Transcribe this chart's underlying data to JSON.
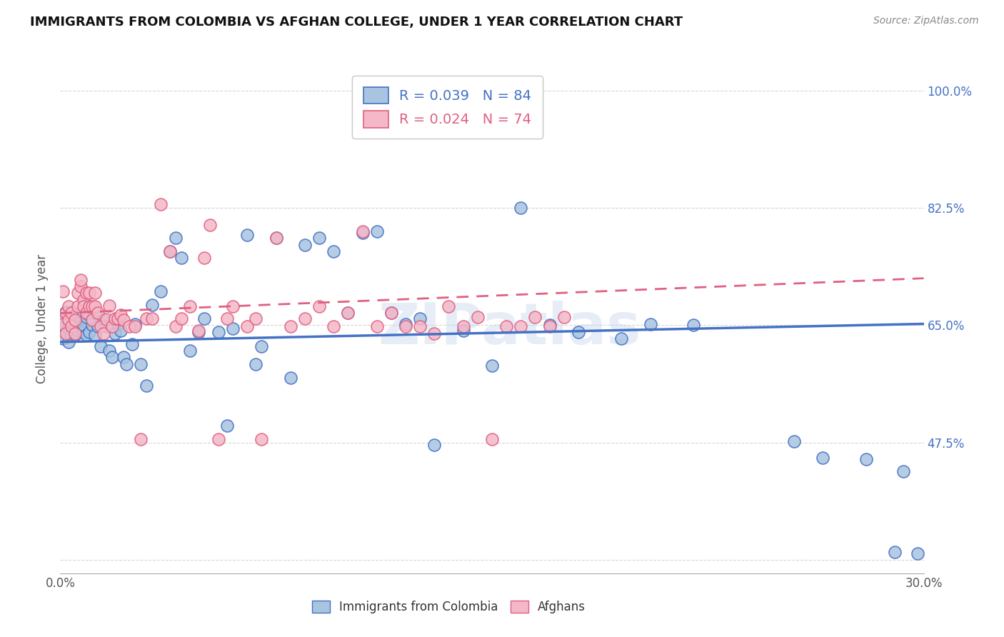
{
  "title": "IMMIGRANTS FROM COLOMBIA VS AFGHAN COLLEGE, UNDER 1 YEAR CORRELATION CHART",
  "source": "Source: ZipAtlas.com",
  "ylabel": "College, Under 1 year",
  "xlim": [
    0.0,
    0.3
  ],
  "ylim": [
    0.28,
    1.04
  ],
  "xticks": [
    0.0,
    0.05,
    0.1,
    0.15,
    0.2,
    0.25,
    0.3
  ],
  "xticklabels": [
    "0.0%",
    "",
    "",
    "",
    "",
    "",
    "30.0%"
  ],
  "ytick_positions": [
    0.3,
    0.475,
    0.65,
    0.825,
    1.0
  ],
  "yticklabels": [
    "",
    "47.5%",
    "65.0%",
    "82.5%",
    "100.0%"
  ],
  "watermark": "ZIPatlas",
  "colombia_color": "#a8c4e0",
  "afghan_color": "#f4b8c8",
  "colombia_line_color": "#4472c4",
  "afghan_line_color": "#e06080",
  "legend_r_colombia": "R = 0.039",
  "legend_n_colombia": "N = 84",
  "legend_r_afghan": "R = 0.024",
  "legend_n_afghan": "N = 74",
  "colombia_trendline": [
    0.625,
    0.652
  ],
  "afghan_trendline": [
    0.668,
    0.72
  ],
  "colombia_scatter_x": [
    0.001,
    0.001,
    0.001,
    0.002,
    0.002,
    0.002,
    0.003,
    0.003,
    0.003,
    0.004,
    0.004,
    0.004,
    0.005,
    0.005,
    0.005,
    0.006,
    0.006,
    0.007,
    0.007,
    0.008,
    0.008,
    0.009,
    0.009,
    0.01,
    0.01,
    0.011,
    0.011,
    0.012,
    0.012,
    0.013,
    0.014,
    0.015,
    0.016,
    0.017,
    0.018,
    0.019,
    0.02,
    0.021,
    0.022,
    0.023,
    0.025,
    0.026,
    0.028,
    0.03,
    0.032,
    0.035,
    0.038,
    0.04,
    0.042,
    0.045,
    0.048,
    0.05,
    0.055,
    0.058,
    0.06,
    0.065,
    0.068,
    0.07,
    0.075,
    0.08,
    0.085,
    0.09,
    0.095,
    0.1,
    0.105,
    0.11,
    0.115,
    0.12,
    0.125,
    0.13,
    0.14,
    0.15,
    0.16,
    0.17,
    0.18,
    0.195,
    0.205,
    0.22,
    0.255,
    0.265,
    0.28,
    0.29,
    0.293,
    0.298
  ],
  "colombia_scatter_y": [
    0.648,
    0.66,
    0.63,
    0.65,
    0.64,
    0.67,
    0.645,
    0.665,
    0.625,
    0.655,
    0.635,
    0.67,
    0.648,
    0.66,
    0.635,
    0.655,
    0.642,
    0.66,
    0.67,
    0.64,
    0.65,
    0.662,
    0.635,
    0.64,
    0.665,
    0.65,
    0.66,
    0.635,
    0.668,
    0.648,
    0.618,
    0.658,
    0.648,
    0.612,
    0.602,
    0.638,
    0.652,
    0.642,
    0.602,
    0.592,
    0.622,
    0.652,
    0.592,
    0.56,
    0.68,
    0.7,
    0.76,
    0.78,
    0.75,
    0.612,
    0.64,
    0.66,
    0.64,
    0.5,
    0.645,
    0.785,
    0.592,
    0.618,
    0.78,
    0.572,
    0.77,
    0.78,
    0.76,
    0.668,
    0.788,
    0.79,
    0.668,
    0.652,
    0.66,
    0.472,
    0.642,
    0.59,
    0.825,
    0.65,
    0.64,
    0.63,
    0.652,
    0.65,
    0.477,
    0.452,
    0.45,
    0.312,
    0.432,
    0.31
  ],
  "afghan_scatter_x": [
    0.001,
    0.001,
    0.002,
    0.002,
    0.003,
    0.003,
    0.004,
    0.004,
    0.005,
    0.005,
    0.006,
    0.006,
    0.007,
    0.007,
    0.008,
    0.008,
    0.009,
    0.009,
    0.01,
    0.01,
    0.011,
    0.011,
    0.012,
    0.012,
    0.013,
    0.014,
    0.015,
    0.016,
    0.017,
    0.018,
    0.019,
    0.02,
    0.021,
    0.022,
    0.024,
    0.026,
    0.028,
    0.03,
    0.032,
    0.035,
    0.038,
    0.04,
    0.042,
    0.045,
    0.048,
    0.05,
    0.052,
    0.055,
    0.058,
    0.06,
    0.065,
    0.068,
    0.07,
    0.075,
    0.08,
    0.085,
    0.09,
    0.095,
    0.1,
    0.105,
    0.11,
    0.115,
    0.12,
    0.125,
    0.13,
    0.135,
    0.14,
    0.145,
    0.15,
    0.155,
    0.16,
    0.165,
    0.17,
    0.175
  ],
  "afghan_scatter_y": [
    0.652,
    0.7,
    0.668,
    0.638,
    0.678,
    0.658,
    0.668,
    0.648,
    0.658,
    0.638,
    0.678,
    0.698,
    0.708,
    0.718,
    0.688,
    0.678,
    0.698,
    0.668,
    0.678,
    0.698,
    0.658,
    0.678,
    0.698,
    0.678,
    0.668,
    0.648,
    0.638,
    0.659,
    0.679,
    0.648,
    0.66,
    0.66,
    0.665,
    0.658,
    0.648,
    0.648,
    0.48,
    0.66,
    0.66,
    0.83,
    0.76,
    0.648,
    0.66,
    0.678,
    0.642,
    0.75,
    0.8,
    0.48,
    0.66,
    0.678,
    0.648,
    0.66,
    0.48,
    0.78,
    0.648,
    0.66,
    0.678,
    0.648,
    0.668,
    0.79,
    0.648,
    0.668,
    0.648,
    0.648,
    0.638,
    0.678,
    0.648,
    0.662,
    0.48,
    0.648,
    0.648,
    0.662,
    0.648,
    0.662
  ]
}
